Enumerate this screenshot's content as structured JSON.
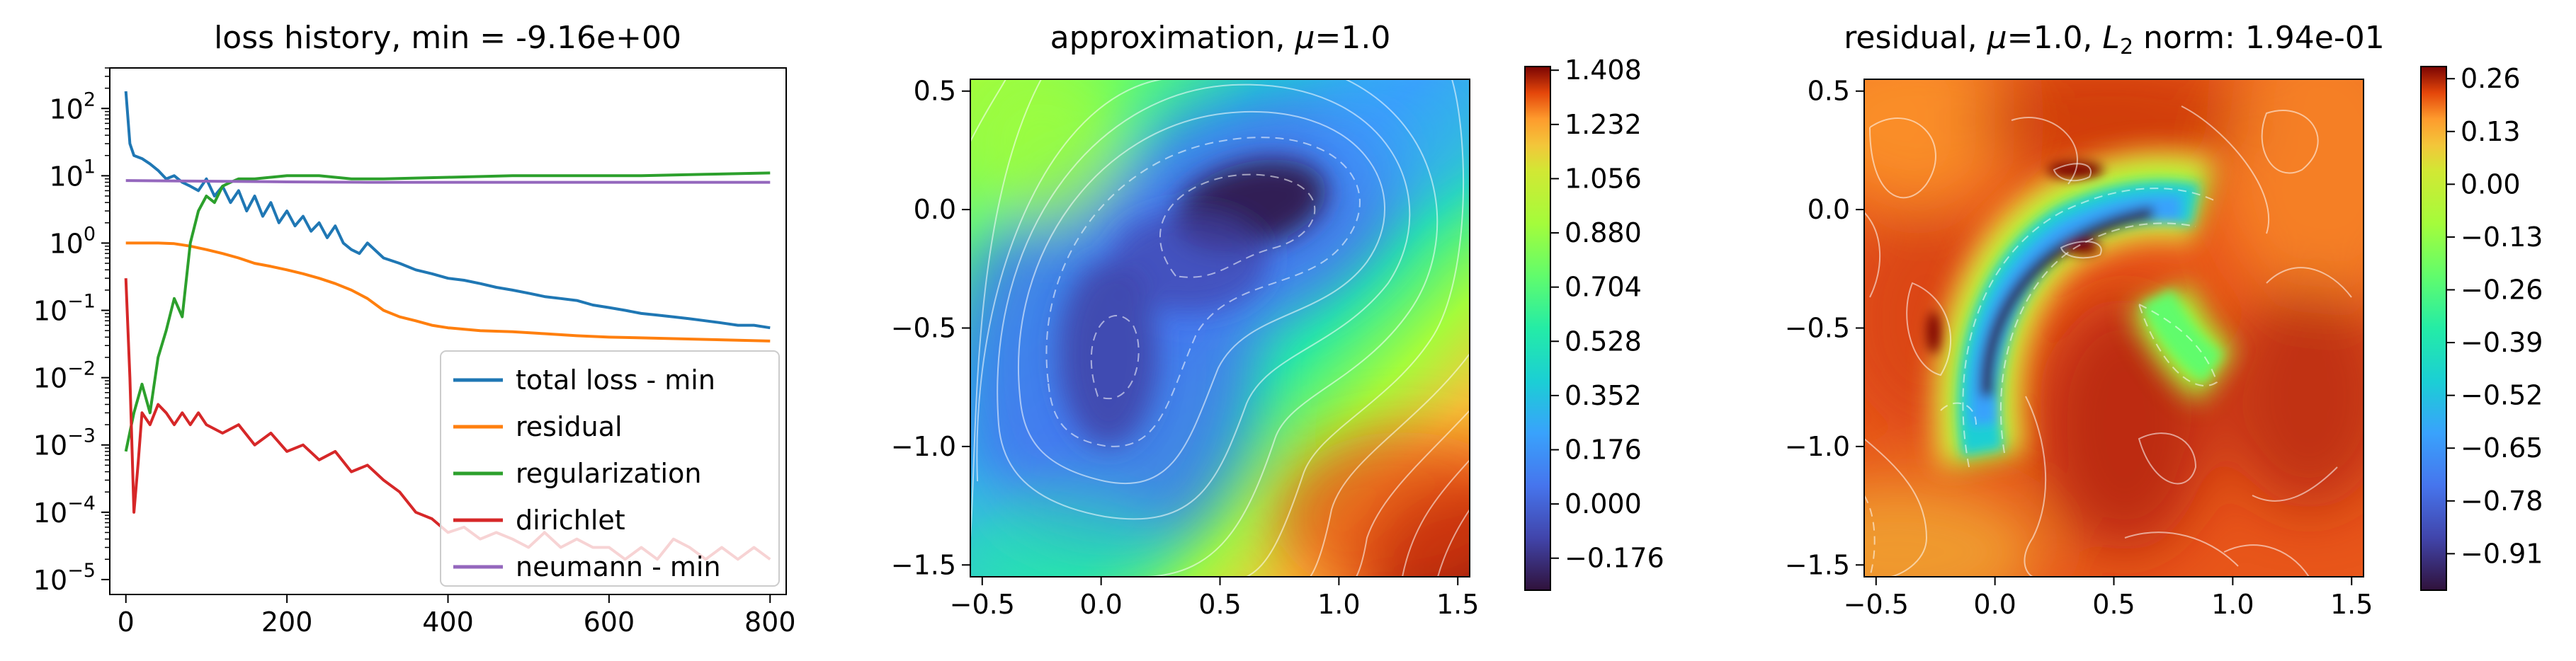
{
  "chart_data": [
    {
      "type": "line",
      "title": "loss history, min = -9.16e+00",
      "xlabel": "",
      "ylabel": "",
      "y_scale": "log",
      "xlim": [
        -20,
        820
      ],
      "ylim": [
        6e-06,
        400.0
      ],
      "x_ticks": [
        0,
        200,
        400,
        600,
        800
      ],
      "y_ticks": [
        {
          "value": 1e-05,
          "base": "10",
          "exp": "−5"
        },
        {
          "value": 0.0001,
          "base": "10",
          "exp": "−4"
        },
        {
          "value": 0.001,
          "base": "10",
          "exp": "−3"
        },
        {
          "value": 0.01,
          "base": "10",
          "exp": "−2"
        },
        {
          "value": 0.1,
          "base": "10",
          "exp": "−1"
        },
        {
          "value": 1.0,
          "base": "10",
          "exp": "0"
        },
        {
          "value": 10.0,
          "base": "10",
          "exp": "1"
        },
        {
          "value": 100.0,
          "base": "10",
          "exp": "2"
        }
      ],
      "legend_position": "lower-right",
      "series": [
        {
          "name": "total loss - min",
          "color": "#1f77b4",
          "x": [
            0,
            5,
            10,
            20,
            30,
            40,
            50,
            60,
            70,
            80,
            90,
            100,
            110,
            120,
            130,
            140,
            150,
            160,
            170,
            180,
            190,
            200,
            210,
            220,
            230,
            240,
            250,
            260,
            270,
            280,
            290,
            300,
            320,
            340,
            360,
            380,
            400,
            420,
            440,
            460,
            480,
            500,
            520,
            540,
            560,
            580,
            600,
            620,
            640,
            660,
            680,
            700,
            720,
            740,
            760,
            780,
            800
          ],
          "y": [
            180,
            30,
            20,
            18,
            15,
            12,
            9,
            10,
            8,
            7,
            6,
            9,
            5,
            7,
            4,
            6,
            3,
            5,
            2.5,
            4,
            2,
            3,
            1.8,
            2.5,
            1.5,
            2,
            1.2,
            1.8,
            1,
            0.8,
            0.7,
            1,
            0.6,
            0.5,
            0.4,
            0.35,
            0.3,
            0.28,
            0.25,
            0.22,
            0.2,
            0.18,
            0.16,
            0.15,
            0.14,
            0.12,
            0.11,
            0.1,
            0.09,
            0.085,
            0.08,
            0.075,
            0.07,
            0.065,
            0.06,
            0.06,
            0.055
          ]
        },
        {
          "name": "residual",
          "color": "#ff7f0e",
          "x": [
            0,
            20,
            40,
            60,
            80,
            100,
            120,
            140,
            160,
            180,
            200,
            220,
            240,
            260,
            280,
            300,
            320,
            340,
            360,
            380,
            400,
            440,
            480,
            520,
            560,
            600,
            640,
            680,
            720,
            760,
            800
          ],
          "y": [
            1,
            1,
            1,
            0.98,
            0.9,
            0.8,
            0.7,
            0.6,
            0.5,
            0.45,
            0.4,
            0.35,
            0.3,
            0.25,
            0.2,
            0.15,
            0.1,
            0.08,
            0.07,
            0.06,
            0.055,
            0.05,
            0.048,
            0.045,
            0.042,
            0.04,
            0.039,
            0.038,
            0.037,
            0.036,
            0.035
          ]
        },
        {
          "name": "regularization",
          "color": "#2ca02c",
          "x": [
            0,
            10,
            20,
            30,
            40,
            50,
            60,
            70,
            80,
            90,
            100,
            110,
            120,
            130,
            140,
            160,
            180,
            200,
            240,
            280,
            320,
            400,
            480,
            560,
            640,
            720,
            800
          ],
          "y": [
            0.0008,
            0.003,
            0.008,
            0.003,
            0.02,
            0.05,
            0.15,
            0.08,
            1,
            3,
            5,
            4,
            7,
            8,
            9,
            9,
            9.5,
            10,
            10,
            9,
            9,
            9.5,
            10,
            10,
            10,
            10.5,
            11
          ]
        },
        {
          "name": "dirichlet",
          "color": "#d62728",
          "x": [
            0,
            5,
            10,
            15,
            20,
            30,
            40,
            50,
            60,
            70,
            80,
            90,
            100,
            120,
            140,
            160,
            180,
            200,
            220,
            240,
            260,
            280,
            300,
            320,
            340,
            360,
            380,
            400,
            420,
            440,
            460,
            480,
            500,
            520,
            540,
            560,
            580,
            600,
            620,
            640,
            660,
            680,
            700,
            720,
            740,
            760,
            780,
            800
          ],
          "y": [
            0.3,
            0.01,
            0.0001,
            0.0005,
            0.003,
            0.002,
            0.004,
            0.003,
            0.002,
            0.003,
            0.002,
            0.003,
            0.002,
            0.0015,
            0.002,
            0.001,
            0.0015,
            0.0008,
            0.001,
            0.0006,
            0.0008,
            0.0004,
            0.0005,
            0.0003,
            0.0002,
            0.0001,
            8e-05,
            5e-05,
            6e-05,
            4e-05,
            5e-05,
            4e-05,
            3e-05,
            5e-05,
            3e-05,
            4e-05,
            3e-05,
            3e-05,
            2e-05,
            3e-05,
            2e-05,
            4e-05,
            3e-05,
            2e-05,
            3e-05,
            2e-05,
            3e-05,
            2e-05
          ]
        },
        {
          "name": "neumann - min",
          "color": "#9467bd",
          "x": [
            0,
            100,
            200,
            300,
            400,
            500,
            600,
            700,
            800
          ],
          "y": [
            8.5,
            8.3,
            8.1,
            8.0,
            8.0,
            8.0,
            8.0,
            8.0,
            8.0
          ]
        }
      ]
    },
    {
      "type": "heatmap",
      "title_main": "approximation, ",
      "title_mu": "μ",
      "title_tail": "=1.0",
      "xlabel": "",
      "ylabel": "",
      "xlim": [
        -0.55,
        1.55
      ],
      "ylim": [
        -1.55,
        0.55
      ],
      "x_ticks": [
        "−0.5",
        "0.0",
        "0.5",
        "1.0",
        "1.5"
      ],
      "x_tick_values": [
        -0.5,
        0.0,
        0.5,
        1.0,
        1.5
      ],
      "y_ticks": [
        "0.5",
        "0.0",
        "−0.5",
        "−1.0",
        "−1.5"
      ],
      "y_tick_values": [
        0.5,
        0.0,
        -0.5,
        -1.0,
        -1.5
      ],
      "colormap": "turbo",
      "colorbar_ticks": [
        "1.408",
        "1.232",
        "1.056",
        "0.880",
        "0.704",
        "0.528",
        "0.352",
        "0.176",
        "0.000",
        "−0.176"
      ],
      "colorbar_range": [
        -0.28,
        1.42
      ]
    },
    {
      "type": "heatmap",
      "title_main": "residual, ",
      "title_mu": "μ",
      "title_mid": "=1.0, ",
      "title_L": "L",
      "title_sub": "2",
      "title_tail": " norm: 1.94e-01",
      "xlabel": "",
      "ylabel": "",
      "xlim": [
        -0.55,
        1.55
      ],
      "ylim": [
        -1.55,
        0.55
      ],
      "x_ticks": [
        "−0.5",
        "0.0",
        "0.5",
        "1.0",
        "1.5"
      ],
      "x_tick_values": [
        -0.5,
        0.0,
        0.5,
        1.0,
        1.5
      ],
      "y_ticks": [
        "0.5",
        "0.0",
        "−0.5",
        "−1.0",
        "−1.5"
      ],
      "y_tick_values": [
        0.5,
        0.0,
        -0.5,
        -1.0,
        -1.5
      ],
      "colormap": "turbo",
      "colorbar_ticks": [
        "0.26",
        "0.13",
        "0.00",
        "−0.13",
        "−0.26",
        "−0.39",
        "−0.52",
        "−0.65",
        "−0.78",
        "−0.91"
      ],
      "colorbar_range": [
        -1.0,
        0.29
      ]
    }
  ]
}
